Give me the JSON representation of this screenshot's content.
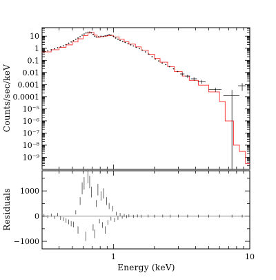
{
  "chart_data": [
    {
      "type": "line",
      "panel": "spectrum",
      "title": "",
      "xlabel": "",
      "ylabel": "Counts/sec/keV",
      "xscale": "log",
      "yscale": "log",
      "xlim": [
        0.3,
        10
      ],
      "ylim": [
        1e-10,
        50
      ],
      "ytick_labels": [
        {
          "value": 10,
          "label": "10"
        },
        {
          "value": 1,
          "label": "1"
        },
        {
          "value": 0.1,
          "label": "0.1"
        },
        {
          "value": 0.01,
          "label": "0.01"
        },
        {
          "value": 0.001,
          "label": "0.001"
        },
        {
          "value": 0.0001,
          "label": "0.0001"
        },
        {
          "value": 1e-05,
          "label": "10⁻⁵"
        },
        {
          "value": 1e-06,
          "label": "10⁻⁶"
        },
        {
          "value": 1e-07,
          "label": "10⁻⁷"
        },
        {
          "value": 1e-08,
          "label": "10⁻⁸"
        },
        {
          "value": 1e-09,
          "label": "10⁻⁹"
        }
      ],
      "series": [
        {
          "style": "crosses",
          "color": "#000000",
          "points": [
            {
              "x": 0.31,
              "y": 0.55,
              "xerr": 0.01,
              "yerr": 0.12
            },
            {
              "x": 0.33,
              "y": 0.6
            },
            {
              "x": 0.35,
              "y": 0.75
            },
            {
              "x": 0.37,
              "y": 0.9
            },
            {
              "x": 0.39,
              "y": 1.1
            },
            {
              "x": 0.41,
              "y": 1.3
            },
            {
              "x": 0.43,
              "y": 1.6
            },
            {
              "x": 0.45,
              "y": 2.0
            },
            {
              "x": 0.47,
              "y": 2.6
            },
            {
              "x": 0.49,
              "y": 3.3
            },
            {
              "x": 0.51,
              "y": 4.2
            },
            {
              "x": 0.53,
              "y": 5.5
            },
            {
              "x": 0.55,
              "y": 7.0
            },
            {
              "x": 0.57,
              "y": 9.0
            },
            {
              "x": 0.59,
              "y": 12.0
            },
            {
              "x": 0.61,
              "y": 15.0
            },
            {
              "x": 0.63,
              "y": 18.0
            },
            {
              "x": 0.65,
              "y": 21.0
            },
            {
              "x": 0.67,
              "y": 22.0
            },
            {
              "x": 0.69,
              "y": 19.0
            },
            {
              "x": 0.71,
              "y": 14.0
            },
            {
              "x": 0.73,
              "y": 10.0
            },
            {
              "x": 0.75,
              "y": 8.5
            },
            {
              "x": 0.78,
              "y": 9.0
            },
            {
              "x": 0.81,
              "y": 10.0
            },
            {
              "x": 0.84,
              "y": 9.5
            },
            {
              "x": 0.87,
              "y": 10.5
            },
            {
              "x": 0.9,
              "y": 11.5
            },
            {
              "x": 0.93,
              "y": 13.5
            },
            {
              "x": 0.96,
              "y": 12.0
            },
            {
              "x": 1.0,
              "y": 9.5
            },
            {
              "x": 1.04,
              "y": 7.0
            },
            {
              "x": 1.08,
              "y": 5.5
            },
            {
              "x": 1.12,
              "y": 4.5
            },
            {
              "x": 1.17,
              "y": 3.6
            },
            {
              "x": 1.22,
              "y": 3.0
            },
            {
              "x": 1.28,
              "y": 2.4
            },
            {
              "x": 1.34,
              "y": 1.9
            },
            {
              "x": 1.4,
              "y": 1.55
            },
            {
              "x": 1.47,
              "y": 1.2
            },
            {
              "x": 1.55,
              "y": 0.95
            },
            {
              "x": 1.63,
              "y": 0.7
            },
            {
              "x": 1.72,
              "y": 0.5
            },
            {
              "x": 1.82,
              "y": 0.33
            },
            {
              "x": 1.92,
              "y": 0.2
            },
            {
              "x": 2.03,
              "y": 0.13
            },
            {
              "x": 2.15,
              "y": 0.09
            },
            {
              "x": 2.28,
              "y": 0.06
            },
            {
              "x": 2.42,
              "y": 0.045
            },
            {
              "x": 2.58,
              "y": 0.03
            },
            {
              "x": 2.76,
              "y": 0.02
            },
            {
              "x": 2.96,
              "y": 0.012
            },
            {
              "x": 3.2,
              "y": 0.0075,
              "xerr": 0.12,
              "yerr": 0.002
            },
            {
              "x": 3.5,
              "y": 0.005,
              "xerr": 0.15,
              "yerr": 0.0015
            },
            {
              "x": 3.9,
              "y": 0.003,
              "xerr": 0.2,
              "yerr": 0.001
            },
            {
              "x": 4.45,
              "y": 0.0018,
              "xerr": 0.3,
              "yerr": 0.0006
            },
            {
              "x": 5.6,
              "y": 0.0004,
              "xerr": 0.6,
              "yerr": 0.00015
            },
            {
              "x": 7.4,
              "y": 0.00012,
              "xerr": 1.0,
              "ylo": 1e-10
            },
            {
              "x": 8.8,
              "y": 0.0008,
              "xerr": 0.6,
              "yerr": 0.0005
            }
          ]
        },
        {
          "style": "histogram-step",
          "color": "#ff3030",
          "points": [
            {
              "x": 0.3,
              "y": 0.5
            },
            {
              "x": 0.35,
              "y": 0.75
            },
            {
              "x": 0.4,
              "y": 1.2
            },
            {
              "x": 0.45,
              "y": 1.9
            },
            {
              "x": 0.5,
              "y": 3.3
            },
            {
              "x": 0.55,
              "y": 6.0
            },
            {
              "x": 0.6,
              "y": 11.0
            },
            {
              "x": 0.65,
              "y": 18.0
            },
            {
              "x": 0.68,
              "y": 20.0
            },
            {
              "x": 0.72,
              "y": 12.0
            },
            {
              "x": 0.76,
              "y": 8.0
            },
            {
              "x": 0.8,
              "y": 9.0
            },
            {
              "x": 0.85,
              "y": 10.0
            },
            {
              "x": 0.9,
              "y": 11.0
            },
            {
              "x": 0.95,
              "y": 11.5
            },
            {
              "x": 1.0,
              "y": 8.5
            },
            {
              "x": 1.1,
              "y": 5.5
            },
            {
              "x": 1.2,
              "y": 3.4
            },
            {
              "x": 1.3,
              "y": 2.2
            },
            {
              "x": 1.45,
              "y": 1.3
            },
            {
              "x": 1.6,
              "y": 0.7
            },
            {
              "x": 1.8,
              "y": 0.32
            },
            {
              "x": 2.0,
              "y": 0.14
            },
            {
              "x": 2.2,
              "y": 0.07
            },
            {
              "x": 2.5,
              "y": 0.03
            },
            {
              "x": 2.8,
              "y": 0.012
            },
            {
              "x": 3.2,
              "y": 0.005
            },
            {
              "x": 3.6,
              "y": 0.0022
            },
            {
              "x": 4.2,
              "y": 0.0009
            },
            {
              "x": 5.0,
              "y": 0.00025
            },
            {
              "x": 6.0,
              "y": 4e-05
            },
            {
              "x": 6.6,
              "y": 1e-06
            },
            {
              "x": 7.6,
              "y": 1e-08
            },
            {
              "x": 8.4,
              "y": 3e-09
            },
            {
              "x": 9.3,
              "y": 3e-10
            },
            {
              "x": 10.0,
              "y": 3e-10
            }
          ]
        }
      ]
    },
    {
      "type": "scatter",
      "panel": "residuals",
      "title": "",
      "xlabel": "Energy (keV)",
      "ylabel": "Residuals",
      "xscale": "log",
      "xlim": [
        0.3,
        10
      ],
      "ylim": [
        -1300,
        1800
      ],
      "xtick_labels": [
        {
          "value": 1,
          "label": "1"
        },
        {
          "value": 10,
          "label": "10"
        }
      ],
      "ytick_labels": [
        {
          "value": 1000,
          "label": "1000"
        },
        {
          "value": 0,
          "label": "0"
        },
        {
          "value": -1000,
          "label": "−1000"
        }
      ],
      "points": [
        {
          "x": 0.31,
          "y": 30
        },
        {
          "x": 0.33,
          "y": -20
        },
        {
          "x": 0.35,
          "y": 40
        },
        {
          "x": 0.37,
          "y": -50
        },
        {
          "x": 0.39,
          "y": 60
        },
        {
          "x": 0.41,
          "y": -80
        },
        {
          "x": 0.43,
          "y": -120
        },
        {
          "x": 0.45,
          "y": -170
        },
        {
          "x": 0.47,
          "y": -230
        },
        {
          "x": 0.49,
          "y": -300
        },
        {
          "x": 0.51,
          "y": -330
        },
        {
          "x": 0.53,
          "y": 150
        },
        {
          "x": 0.55,
          "y": -550
        },
        {
          "x": 0.57,
          "y": 600
        },
        {
          "x": 0.59,
          "y": 1100
        },
        {
          "x": 0.61,
          "y": 1300
        },
        {
          "x": 0.63,
          "y": -800
        },
        {
          "x": 0.65,
          "y": 1550
        },
        {
          "x": 0.67,
          "y": 1350
        },
        {
          "x": 0.69,
          "y": 950
        },
        {
          "x": 0.71,
          "y": -450
        },
        {
          "x": 0.73,
          "y": -700
        },
        {
          "x": 0.75,
          "y": 500
        },
        {
          "x": 0.77,
          "y": 1050
        },
        {
          "x": 0.79,
          "y": -200
        },
        {
          "x": 0.81,
          "y": 800
        },
        {
          "x": 0.83,
          "y": -350
        },
        {
          "x": 0.85,
          "y": 900
        },
        {
          "x": 0.87,
          "y": -550
        },
        {
          "x": 0.89,
          "y": 600
        },
        {
          "x": 0.91,
          "y": -250
        },
        {
          "x": 0.93,
          "y": 400
        },
        {
          "x": 0.96,
          "y": -100
        },
        {
          "x": 0.99,
          "y": 300
        },
        {
          "x": 1.02,
          "y": -150
        },
        {
          "x": 1.05,
          "y": 100
        },
        {
          "x": 1.08,
          "y": -80
        },
        {
          "x": 1.12,
          "y": 60
        },
        {
          "x": 1.16,
          "y": -40
        },
        {
          "x": 1.2,
          "y": 30
        },
        {
          "x": 1.25,
          "y": -20
        },
        {
          "x": 1.3,
          "y": 15
        },
        {
          "x": 1.4,
          "y": -10
        },
        {
          "x": 1.5,
          "y": 8
        },
        {
          "x": 1.6,
          "y": -6
        },
        {
          "x": 1.8,
          "y": 5
        },
        {
          "x": 2.0,
          "y": -4
        },
        {
          "x": 2.3,
          "y": 3
        },
        {
          "x": 2.6,
          "y": -2
        },
        {
          "x": 3.0,
          "y": 2
        },
        {
          "x": 3.5,
          "y": 1
        },
        {
          "x": 4.2,
          "y": 0
        },
        {
          "x": 5.0,
          "y": 0
        },
        {
          "x": 6.0,
          "y": 0
        },
        {
          "x": 7.4,
          "y": 0
        },
        {
          "x": 8.8,
          "y": 0
        }
      ]
    }
  ]
}
